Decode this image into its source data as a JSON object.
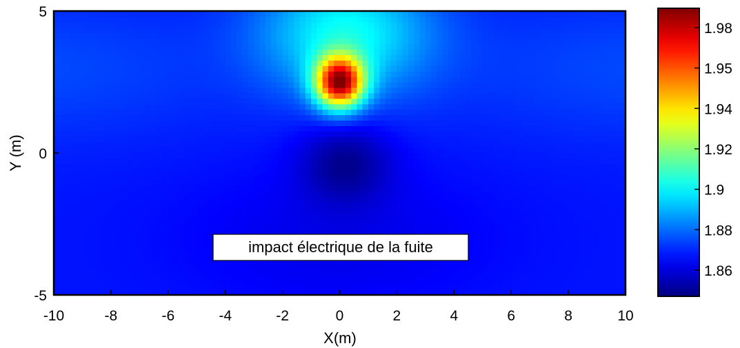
{
  "chart_data": {
    "type": "heatmap",
    "title": "",
    "xlabel": "X(m)",
    "ylabel": "Y (m)",
    "xlim": [
      -10,
      10
    ],
    "ylim": [
      -5,
      5
    ],
    "x_ticks": [
      "-10",
      "-8",
      "-6",
      "-4",
      "-2",
      "0",
      "2",
      "4",
      "6",
      "8",
      "10"
    ],
    "y_ticks": [
      "5",
      "0",
      "-5"
    ],
    "colorbar": {
      "min": 1.845,
      "max": 1.99,
      "tick_values": [
        1.86,
        1.88,
        1.9,
        1.92,
        1.94,
        1.95,
        1.98
      ],
      "tick_labels": [
        "1.86",
        "1.88",
        "1.9",
        "1.92",
        "1.94",
        "1.95",
        "1.98"
      ],
      "colormap": "jet"
    },
    "features": {
      "anomaly_max": {
        "x": 0,
        "y": 2.5,
        "value": 1.985
      },
      "anomaly_min": {
        "x": 0.2,
        "y": -0.3,
        "value": 1.848
      },
      "background_value": 1.866
    },
    "annotation": {
      "text": "impact électrique de la fuite",
      "x": -4.4,
      "y": -3.3
    },
    "grid": false,
    "legend": "none"
  }
}
